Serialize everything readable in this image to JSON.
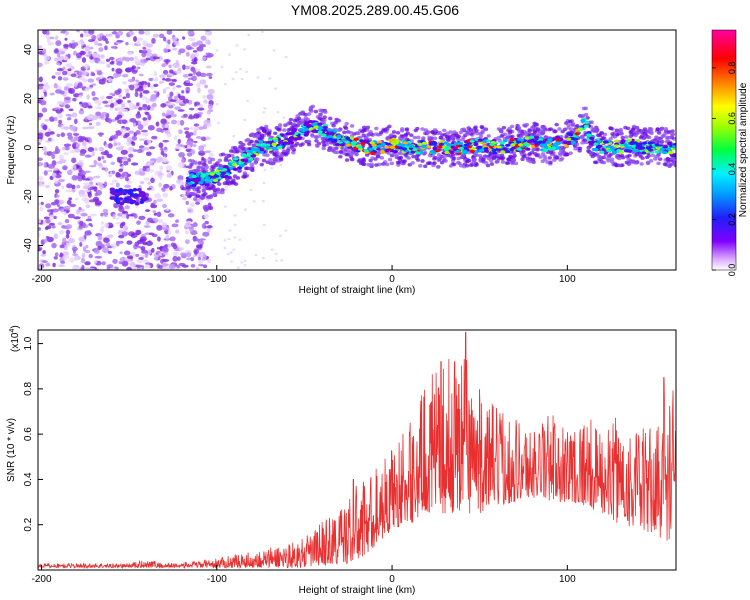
{
  "title": "YM08.2025.289.00.45.G06",
  "colors": {
    "scatter_background": "#7a2ae0",
    "snr_line": "#e83030",
    "axis": "#000000"
  },
  "chart_data": [
    {
      "type": "heatmap",
      "xlabel": "Height of straight line (km)",
      "ylabel": "Frequency (Hz)",
      "xlim": [
        -202,
        162
      ],
      "ylim": [
        -50,
        48
      ],
      "xticks": [
        -200,
        -100,
        0,
        100
      ],
      "xtick_labels": [
        "-200",
        "-100",
        "0",
        "100"
      ],
      "yticks": [
        -40,
        -20,
        0,
        20,
        40
      ],
      "ytick_labels": [
        "-40",
        "-20",
        "0",
        "20",
        "40"
      ],
      "colorbar": {
        "label": "Normalized spectral amplitude",
        "range": [
          0,
          0.95
        ],
        "ticks": [
          0,
          0.2,
          0.4,
          0.6,
          0.8
        ],
        "tick_labels": [
          "0.0",
          "0.2",
          "0.4",
          "0.6",
          "0.8"
        ],
        "colormap": [
          "#ffffff",
          "#c080ff",
          "#7a00ff",
          "#2020ff",
          "#00a0ff",
          "#00f0ff",
          "#00ff40",
          "#a0ff00",
          "#ffff00",
          "#ff8000",
          "#ff0000",
          "#ff00a0"
        ]
      },
      "noise_region": {
        "x_range": [
          -202,
          -103
        ],
        "freq_range": [
          -50,
          48
        ]
      },
      "ridge": {
        "x": [
          -117,
          -105,
          -95,
          -85,
          -75,
          -65,
          -55,
          -45,
          -38,
          -30,
          -20,
          -10,
          0,
          10,
          20,
          30,
          40,
          50,
          60,
          70,
          80,
          90,
          100,
          106,
          110,
          115,
          125,
          135,
          145,
          155,
          162
        ],
        "freq": [
          -13,
          -13,
          -10,
          -5,
          0,
          2,
          5,
          9,
          7,
          3,
          1,
          0,
          1,
          0,
          0,
          0,
          0,
          1,
          0,
          1,
          2,
          1,
          3,
          5,
          10,
          1,
          0,
          1,
          0,
          0,
          -1
        ]
      },
      "ridge_lower_branch": {
        "x": [
          -160,
          -140
        ],
        "freq": [
          -20,
          -20
        ]
      }
    },
    {
      "type": "line",
      "xlabel": "Height of straight line (km)",
      "ylabel": "SNR (10 * v/v)",
      "scale_label": "(x10",
      "scale_exponent": "4",
      "scale_suffix": ")",
      "xlim": [
        -202,
        162
      ],
      "ylim": [
        0,
        1.06
      ],
      "xticks": [
        -200,
        -100,
        0,
        100
      ],
      "xtick_labels": [
        "-200",
        "-100",
        "0",
        "100"
      ],
      "yticks": [
        0.2,
        0.4,
        0.6,
        0.8,
        1.0
      ],
      "ytick_labels": [
        "0.2",
        "0.4",
        "0.6",
        "0.8",
        "1.0"
      ],
      "envelope": {
        "x": [
          -202,
          -150,
          -140,
          -130,
          -110,
          -100,
          -90,
          -80,
          -70,
          -60,
          -50,
          -40,
          -30,
          -20,
          -10,
          0,
          10,
          20,
          30,
          40,
          50,
          60,
          70,
          80,
          90,
          100,
          110,
          120,
          130,
          140,
          150,
          160,
          162
        ],
        "base": [
          0.01,
          0.01,
          0.01,
          0.01,
          0.01,
          0.01,
          0.01,
          0.01,
          0.01,
          0.01,
          0.01,
          0.02,
          0.02,
          0.03,
          0.1,
          0.18,
          0.2,
          0.25,
          0.25,
          0.25,
          0.25,
          0.28,
          0.3,
          0.32,
          0.3,
          0.3,
          0.28,
          0.25,
          0.2,
          0.18,
          0.15,
          0.12,
          0.1
        ],
        "upper": [
          0.03,
          0.03,
          0.05,
          0.03,
          0.04,
          0.05,
          0.07,
          0.08,
          0.1,
          0.12,
          0.14,
          0.22,
          0.28,
          0.38,
          0.45,
          0.55,
          0.65,
          0.85,
          0.9,
          1.05,
          0.8,
          0.72,
          0.7,
          0.62,
          0.7,
          0.65,
          0.7,
          0.6,
          0.7,
          0.62,
          0.65,
          0.85,
          0.75
        ]
      },
      "peaks": [
        {
          "x": -136,
          "y": 0.035
        },
        {
          "x": -22,
          "y": 0.4
        },
        {
          "x": 28,
          "y": 0.92
        },
        {
          "x": 38,
          "y": 0.82
        },
        {
          "x": 42,
          "y": 1.05
        },
        {
          "x": 84,
          "y": 0.6
        },
        {
          "x": 95,
          "y": 0.58
        },
        {
          "x": 155,
          "y": 0.85
        }
      ]
    }
  ]
}
